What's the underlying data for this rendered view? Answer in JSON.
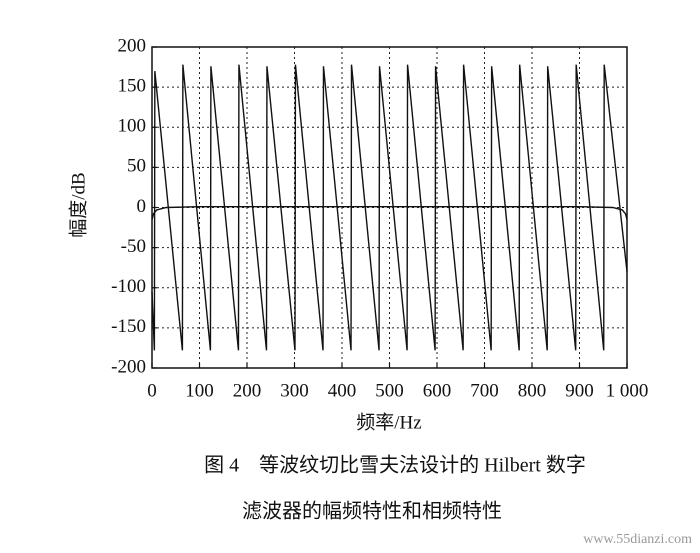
{
  "chart_data": {
    "type": "line",
    "ylabel": "幅度/dB",
    "xlabel": "频率/Hz",
    "caption": [
      "图 4　等波纹切比雪夫法设计的 Hilbert 数字",
      "滤波器的幅频特性和相频特性"
    ],
    "watermark": "www.55dianzi.com",
    "xlim": [
      0,
      1000
    ],
    "xticks": [
      0,
      100,
      200,
      300,
      400,
      500,
      600,
      700,
      800,
      900,
      {
        "value": 1000,
        "label": "1 000"
      }
    ],
    "ylim": [
      -200,
      200
    ],
    "yticks": [
      200,
      150,
      100,
      50,
      0,
      -50,
      -100,
      -150,
      -200
    ],
    "grid": true,
    "series": [
      {
        "color": "#111",
        "x": [
          0,
          5,
          6,
          64,
          65,
          123,
          124,
          182,
          183,
          241,
          242,
          301,
          302,
          360,
          361,
          419,
          420,
          478,
          479,
          537,
          538,
          596,
          597,
          655,
          656,
          714,
          715,
          773,
          774,
          832,
          833,
          892,
          893,
          951,
          952,
          1000
        ],
        "values": [
          -105,
          -178,
          170,
          -178,
          178,
          -178,
          176,
          -178,
          178,
          -178,
          176,
          -178,
          178,
          -178,
          176,
          -178,
          178,
          -178,
          176,
          -178,
          178,
          -178,
          176,
          -178,
          178,
          -178,
          176,
          -178,
          178,
          -178,
          176,
          -178,
          178,
          -178,
          178,
          -80
        ]
      },
      {
        "color": "#111",
        "x": [
          0,
          3,
          10,
          30,
          100,
          300,
          500,
          700,
          900,
          970,
          990,
          997,
          1000
        ],
        "values": [
          -15,
          -8,
          -3,
          0,
          1,
          1,
          1,
          1,
          1,
          0,
          -3,
          -8,
          -15
        ]
      }
    ]
  }
}
